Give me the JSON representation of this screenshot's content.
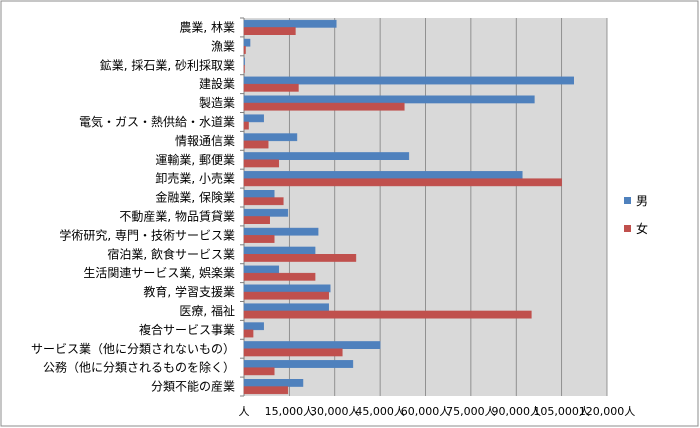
{
  "chart_data": {
    "type": "bar",
    "orientation": "horizontal",
    "categories": [
      "農業, 林業",
      "漁業",
      "鉱業, 採石業, 砂利採取業",
      "建設業",
      "製造業",
      "電気・ガス・熱供給・水道業",
      "情報通信業",
      "運輸業, 郵便業",
      "卸売業, 小売業",
      "金融業, 保険業",
      "不動産業, 物品賃貸業",
      "学術研究, 専門・技術サービス業",
      "宿泊業, 飲食サービス業",
      "生活関連サービス業, 娯楽業",
      "教育, 学習支援業",
      "医療, 福祉",
      "複合サービス事業",
      "サービス業（他に分類されないもの）",
      "公務（他に分類されるものを除く）",
      "分類不能の産業"
    ],
    "series": [
      {
        "name": "男",
        "color": "#4f81bd",
        "values": [
          30500,
          2000,
          200,
          109000,
          96000,
          6500,
          17500,
          54500,
          92000,
          10000,
          14500,
          24500,
          23500,
          11500,
          28500,
          28000,
          6500,
          45000,
          36000,
          19500
        ]
      },
      {
        "name": "女",
        "color": "#c0504d",
        "values": [
          17000,
          500,
          100,
          18000,
          53000,
          1500,
          8000,
          11500,
          105000,
          13000,
          8500,
          10000,
          37000,
          23500,
          28000,
          95000,
          3000,
          32500,
          10000,
          14500
        ]
      }
    ],
    "x_ticks": [
      "人",
      "15,000人",
      "30,000人",
      "45,000人",
      "60,000人",
      "75,000人",
      "90,000人",
      "105,000人",
      "120,000人"
    ],
    "xlim": [
      0,
      120000
    ],
    "grid": true,
    "legend_position": "right"
  }
}
